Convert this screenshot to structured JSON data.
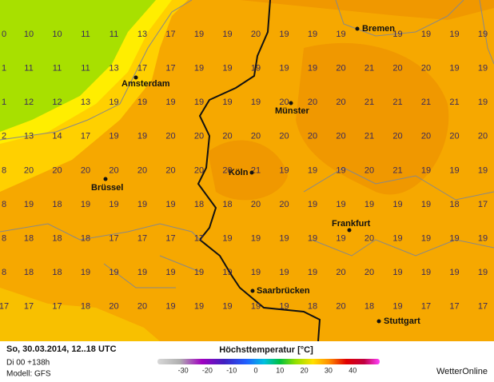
{
  "map": {
    "grid": [
      [
        0,
        10,
        10,
        11,
        11,
        13,
        17,
        19,
        19,
        20,
        19,
        19,
        19,
        null,
        19,
        19,
        19,
        19
      ],
      [
        1,
        11,
        11,
        11,
        13,
        17,
        17,
        19,
        19,
        19,
        19,
        19,
        20,
        21,
        20,
        20,
        19,
        19
      ],
      [
        1,
        12,
        12,
        13,
        19,
        19,
        19,
        19,
        19,
        19,
        20,
        20,
        20,
        21,
        21,
        21,
        21,
        19
      ],
      [
        2,
        13,
        14,
        17,
        19,
        19,
        20,
        20,
        20,
        20,
        20,
        20,
        20,
        21,
        20,
        20,
        20,
        20
      ],
      [
        8,
        20,
        20,
        20,
        20,
        20,
        20,
        20,
        20,
        21,
        19,
        19,
        19,
        20,
        21,
        19,
        19,
        19
      ],
      [
        8,
        19,
        18,
        19,
        19,
        19,
        19,
        18,
        18,
        20,
        20,
        19,
        19,
        19,
        19,
        19,
        18,
        17
      ],
      [
        8,
        18,
        18,
        18,
        17,
        17,
        17,
        17,
        19,
        19,
        19,
        19,
        19,
        20,
        19,
        19,
        19,
        19
      ],
      [
        8,
        18,
        18,
        19,
        19,
        19,
        19,
        19,
        19,
        19,
        19,
        19,
        20,
        20,
        19,
        19,
        19,
        19
      ],
      [
        17,
        17,
        17,
        18,
        20,
        20,
        19,
        19,
        19,
        19,
        19,
        18,
        20,
        18,
        19,
        17,
        17,
        17
      ]
    ],
    "cities": [
      "Bremen",
      "Amsterdam",
      "Münster",
      "Brüssel",
      "Köln",
      "Frankfurt",
      "Saarbrücken",
      "Stuttgart"
    ]
  },
  "legend": {
    "title": "Höchsttemperatur [°C]",
    "ticks": [
      -30,
      -20,
      -10,
      0,
      10,
      20,
      30,
      40
    ]
  },
  "footer": {
    "run_time": "So, 30.03.2014, 12..18 UTC",
    "forecast_step": "Di 00 +138h",
    "model": "Modell: GFS",
    "brand": "WetterOnline"
  }
}
